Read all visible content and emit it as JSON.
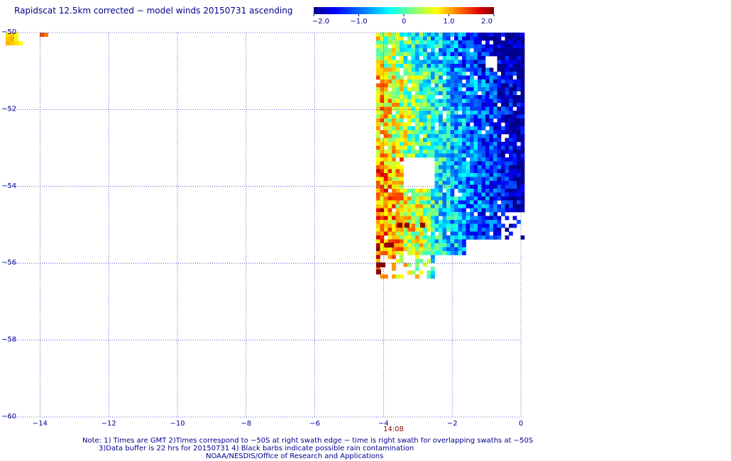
{
  "title": "Rapidscat 12.5km corrected − model winds 20150731 ascending",
  "colorbar": {
    "ticks": [
      "−2.0",
      "−1.0",
      "0",
      "1.0",
      "2.0"
    ],
    "range": [
      -2.0,
      2.0
    ]
  },
  "axes": {
    "x_ticks": [
      "−14",
      "−12",
      "−10",
      "−8",
      "−6",
      "−4",
      "−2",
      "0"
    ],
    "y_ticks": [
      "−50",
      "−52",
      "−54",
      "−56",
      "−58",
      "−60"
    ],
    "lon_range": [
      -15,
      0
    ],
    "lat_range": [
      -60,
      -50
    ],
    "grid": true
  },
  "time_label": "14:08",
  "notes": [
    "Note: 1) Times are GMT 2)Times correspond to −50S at right swath edge − time is right swath for overlapping swaths at −50S",
    "3)Data buffer is 22 hrs for 20150731 4) Black barbs indicate possible rain contamination",
    "NOAA/NESDIS/Office of Research and Applications"
  ]
}
